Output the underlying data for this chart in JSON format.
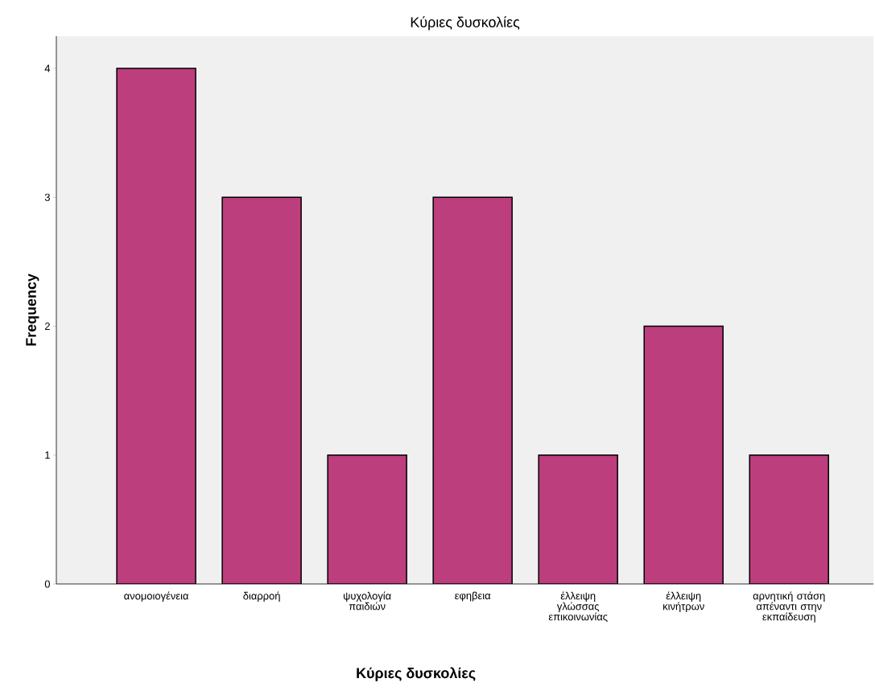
{
  "chart_data": {
    "type": "bar",
    "title": "Κύριες δυσκολίες",
    "xlabel": "Κύριες δυσκολίες",
    "ylabel": "Frequency",
    "categories": [
      "ανομοιογένεια",
      "διαρροή",
      "ψυχολογία παιδιών",
      "εφηβεια",
      "έλλειψη γλώσσας επικοινωνίας",
      "έλλειψη κινήτρων",
      "αρνητική στάση απέναντι στην εκπαίδευση"
    ],
    "values": [
      4,
      3,
      1,
      3,
      1,
      2,
      1
    ],
    "color": "#bc3e7c",
    "ylim": [
      0,
      4.25
    ],
    "yticks": [
      0,
      1,
      2,
      3,
      4
    ],
    "grid": false
  }
}
